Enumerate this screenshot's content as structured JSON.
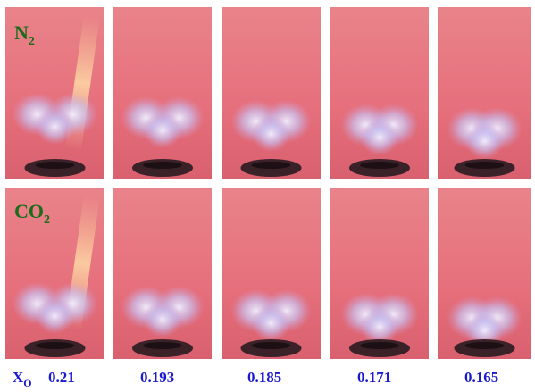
{
  "rows": [
    {
      "label": {
        "text": "N",
        "sub": "2"
      }
    },
    {
      "label": {
        "text": "CO",
        "sub": "2"
      }
    }
  ],
  "x_axis": {
    "label": {
      "text": "X",
      "sub": "O"
    },
    "values": [
      "0.21",
      "0.193",
      "0.185",
      "0.171",
      "0.165"
    ]
  }
}
